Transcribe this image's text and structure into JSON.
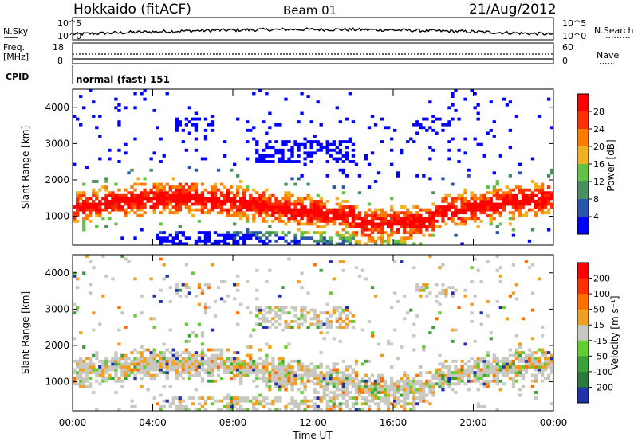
{
  "header": {
    "station": "Hokkaido (fitACF)",
    "beam": "Beam 01",
    "date": "21/Aug/2012"
  },
  "status_panels": {
    "nsky": {
      "label": "N.Sky",
      "tick_top": "10^5",
      "tick_bottom": "10^0"
    },
    "nsearch": {
      "label": "N.Search",
      "tick_top": "10^5",
      "tick_bottom": "10^0"
    },
    "freq": {
      "label_line1": "Freq.",
      "label_line2": "[MHz]",
      "tick_top": "18",
      "tick_bottom": "8"
    },
    "nave": {
      "label": "Nave",
      "tick_top": "60",
      "tick_bottom": "0"
    },
    "cpid": {
      "label": "CPID",
      "mode": "normal (fast) 151"
    }
  },
  "chart_data": [
    {
      "type": "heatmap",
      "name": "power",
      "ylabel": "Slant Range [km]",
      "xlabel": "",
      "x_range_hours": [
        0,
        24
      ],
      "ylim": [
        200,
        4500
      ],
      "y_ticks": [
        "1000",
        "2000",
        "3000",
        "4000"
      ],
      "x_ticks": [
        "00:00",
        "04:00",
        "08:00",
        "12:00",
        "16:00",
        "20:00",
        "00:00"
      ],
      "colorbar": {
        "label": "Power [dB]",
        "ticks": [
          "4",
          "8",
          "12",
          "16",
          "20",
          "24",
          "28"
        ],
        "colors": [
          "#0000ff",
          "#2a56a8",
          "#4a8f5f",
          "#62c244",
          "#f0b020",
          "#ff7a00",
          "#ff3000",
          "#ff0000"
        ]
      }
    },
    {
      "type": "heatmap",
      "name": "velocity",
      "ylabel": "Slant Range [km]",
      "xlabel": "Time UT",
      "x_range_hours": [
        0,
        24
      ],
      "ylim": [
        200,
        4500
      ],
      "y_ticks": [
        "1000",
        "2000",
        "3000",
        "4000"
      ],
      "x_ticks": [
        "00:00",
        "04:00",
        "08:00",
        "12:00",
        "16:00",
        "20:00",
        "00:00"
      ],
      "colorbar": {
        "label": "Velocity [m s⁻¹]",
        "ticks": [
          "200",
          "100",
          "50",
          "15",
          "-15",
          "-50",
          "-100",
          "-200"
        ],
        "colors": [
          "#2233aa",
          "#2a7a3a",
          "#3aa03a",
          "#66cc33",
          "#c8c8c0",
          "#f0a020",
          "#ff7000",
          "#ff3000",
          "#ff0000"
        ]
      }
    }
  ]
}
